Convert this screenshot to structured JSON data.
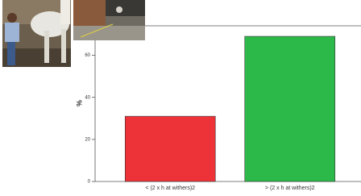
{
  "chart_data": {
    "type": "bar",
    "y_label": "%",
    "categories": [
      "< (2 x h at withers)2",
      "> (2 x h at withers)2"
    ],
    "series": [
      {
        "values": [
          31,
          69
        ],
        "colors": [
          "#ee3338",
          "#2db84a"
        ]
      }
    ],
    "ylim": [
      0,
      74
    ],
    "yticks": [
      0,
      20,
      40,
      60
    ]
  }
}
